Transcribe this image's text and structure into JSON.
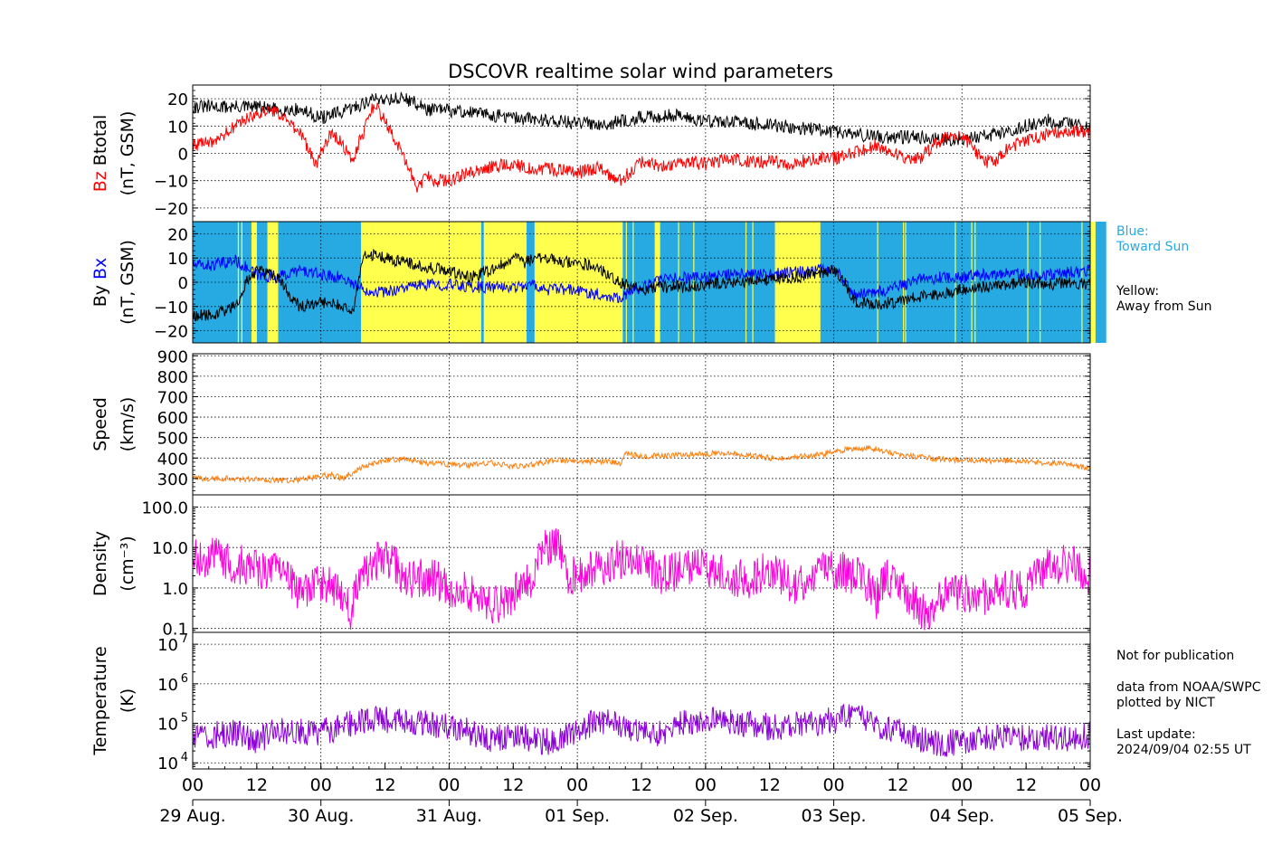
{
  "chart_data": {
    "title": "DSCOVR realtime solar wind parameters",
    "type": "line",
    "x_range": [
      "2024-08-29 00:00",
      "2024-09-05 00:00"
    ],
    "data_end": "2024-09-04 02:55",
    "x_hour_ticks": [
      "00",
      "12",
      "00",
      "12",
      "00",
      "12",
      "00",
      "12",
      "00",
      "12",
      "00",
      "12",
      "00",
      "12",
      "00"
    ],
    "x_date_labels": [
      "29 Aug.",
      "30 Aug.",
      "31 Aug.",
      "01 Sep.",
      "02 Sep.",
      "03 Sep.",
      "04 Sep.",
      "05 Sep."
    ],
    "grid": true,
    "panels": [
      {
        "id": "mag-total",
        "ylabel_parts": [
          {
            "text": "Bz",
            "color": "#ff0000"
          },
          {
            "text": "Btotal",
            "color": "#000000"
          }
        ],
        "ylabel_unit": "(nT, GSM)",
        "ylim": [
          -25,
          25
        ],
        "yticks": [
          20,
          10,
          0,
          -10,
          -20
        ],
        "ytick_labels": [
          "20",
          "10",
          "0",
          "−10",
          "−20"
        ],
        "series": [
          {
            "name": "Btotal",
            "color": "#000000",
            "x": [
              0,
              8,
              12,
              16,
              20,
              24,
              28,
              34,
              40,
              44,
              46,
              52,
              60,
              68,
              72,
              78,
              84,
              90,
              96,
              104,
              110,
              120,
              128,
              136,
              142,
              146,
              150,
              154,
              160,
              166,
              170,
              171
            ],
            "y": [
              17,
              17,
              17,
              16,
              16,
              13,
              15,
              20,
              20,
              16,
              16,
              15,
              13,
              12,
              11,
              11,
              13,
              14,
              12,
              11,
              10,
              8,
              6,
              6,
              5,
              6,
              7,
              9,
              12,
              10,
              8,
              9
            ]
          },
          {
            "name": "Bz",
            "color": "#ff0000",
            "x": [
              0,
              4,
              8,
              12,
              16,
              20,
              23,
              26,
              30,
              34,
              38,
              42,
              44,
              45,
              48,
              52,
              56,
              60,
              64,
              68,
              72,
              76,
              80,
              84,
              88,
              92,
              96,
              100,
              104,
              108,
              112,
              116,
              120,
              124,
              128,
              132,
              136,
              140,
              144,
              148,
              150,
              152,
              156,
              160,
              164,
              166,
              170,
              171
            ],
            "y": [
              3,
              4,
              10,
              15,
              15,
              8,
              -4,
              8,
              -2,
              18,
              5,
              -12,
              -8,
              -10,
              -10,
              -7,
              -5,
              -4,
              -6,
              -6,
              -7,
              -5,
              -10,
              -3,
              -5,
              -3,
              -4,
              -2,
              -3,
              -3,
              -4,
              -2,
              -2,
              0,
              3,
              -1,
              -2,
              5,
              7,
              -3,
              -3,
              1,
              5,
              7,
              8,
              8,
              7,
              7
            ]
          }
        ]
      },
      {
        "id": "mag-direction",
        "ylabel_parts": [
          {
            "text": "By",
            "color": "#000000"
          },
          {
            "text": "Bx",
            "color": "#0000ff"
          }
        ],
        "ylabel_unit": "(nT, GSM)",
        "ylim": [
          -25,
          25
        ],
        "yticks": [
          20,
          10,
          0,
          -10,
          -20
        ],
        "ytick_labels": [
          "20",
          "10",
          "0",
          "−10",
          "−20"
        ],
        "background_color_toward": "#27aae1",
        "background_color_away": "#ffff4d",
        "sector_intervals": [
          {
            "start": 0,
            "end": 11,
            "sector": "toward"
          },
          {
            "start": 11,
            "end": 12,
            "sector": "away"
          },
          {
            "start": 12,
            "end": 14,
            "sector": "toward"
          },
          {
            "start": 14,
            "end": 16,
            "sector": "away"
          },
          {
            "start": 16,
            "end": 31.5,
            "sector": "toward"
          },
          {
            "start": 31.5,
            "end": 54,
            "sector": "away"
          },
          {
            "start": 54,
            "end": 54.5,
            "sector": "toward"
          },
          {
            "start": 54.5,
            "end": 62.5,
            "sector": "away"
          },
          {
            "start": 62.5,
            "end": 64,
            "sector": "toward"
          },
          {
            "start": 64,
            "end": 80.5,
            "sector": "away"
          },
          {
            "start": 80.5,
            "end": 86.5,
            "sector": "toward"
          },
          {
            "start": 86.5,
            "end": 87.5,
            "sector": "away"
          },
          {
            "start": 87.5,
            "end": 109,
            "sector": "toward"
          },
          {
            "start": 109,
            "end": 117.5,
            "sector": "away"
          },
          {
            "start": 117.5,
            "end": 126,
            "sector": "toward"
          },
          {
            "start": 126,
            "end": 168,
            "sector": "toward"
          },
          {
            "start": 168,
            "end": 169,
            "sector": "away"
          },
          {
            "start": 169,
            "end": 171,
            "sector": "toward"
          }
        ],
        "series": [
          {
            "name": "Bx",
            "color": "#0000ff",
            "x": [
              0,
              4,
              8,
              12,
              16,
              20,
              24,
              28,
              32,
              36,
              40,
              44,
              48,
              52,
              56,
              60,
              64,
              66,
              70,
              74,
              78,
              80,
              84,
              88,
              92,
              96,
              100,
              104,
              108,
              112,
              116,
              120,
              124,
              128,
              132,
              136,
              140,
              144,
              148,
              152,
              156,
              160,
              164,
              168,
              171
            ],
            "y": [
              7,
              7,
              9,
              3,
              2,
              5,
              3,
              2,
              -3,
              -4,
              -2,
              -1,
              -1,
              -2,
              -2,
              -2,
              -1,
              -3,
              -3,
              -4,
              -6,
              -6,
              -2,
              1,
              2,
              2,
              3,
              3,
              3,
              4,
              5,
              6,
              -5,
              -4,
              -2,
              1,
              2,
              2,
              3,
              4,
              3,
              3,
              4,
              5,
              6
            ]
          },
          {
            "name": "By",
            "color": "#000000",
            "x": [
              0,
              4,
              8,
              10,
              12,
              16,
              18,
              20,
              24,
              28,
              30,
              32,
              36,
              40,
              44,
              48,
              52,
              56,
              60,
              62,
              64,
              68,
              72,
              76,
              80,
              82,
              84,
              88,
              92,
              96,
              100,
              104,
              108,
              112,
              116,
              120,
              122,
              124,
              128,
              132,
              136,
              140,
              144,
              148,
              152,
              156,
              160,
              164,
              168,
              171
            ],
            "y": [
              -14,
              -13,
              -10,
              0,
              5,
              2,
              -5,
              -10,
              -8,
              -10,
              -13,
              12,
              10,
              8,
              6,
              5,
              2,
              5,
              10,
              8,
              10,
              9,
              8,
              6,
              0,
              -2,
              -3,
              -2,
              -2,
              -1,
              0,
              0,
              1,
              2,
              3,
              5,
              0,
              -8,
              -9,
              -8,
              -6,
              -5,
              -3,
              -2,
              -1,
              0,
              -1,
              0,
              -1,
              0
            ]
          }
        ]
      },
      {
        "id": "speed",
        "ylabel_parts": [
          {
            "text": "Speed",
            "color": "#000000"
          }
        ],
        "ylabel_unit": "(km/s)",
        "ylim": [
          220,
          910
        ],
        "yticks": [
          900,
          800,
          700,
          600,
          500,
          400,
          300
        ],
        "ytick_labels": [
          "900",
          "800",
          "700",
          "600",
          "500",
          "400",
          "300"
        ],
        "series": [
          {
            "name": "Speed",
            "color": "#ff7f0e",
            "x": [
              0,
              6,
              12,
              18,
              22,
              26,
              28,
              30,
              32,
              36,
              40,
              44,
              48,
              52,
              56,
              60,
              64,
              68,
              72,
              76,
              80,
              81,
              84,
              88,
              92,
              96,
              100,
              104,
              108,
              112,
              116,
              120,
              124,
              128,
              132,
              136,
              140,
              144,
              148,
              152,
              156,
              160,
              164,
              168,
              171
            ],
            "y": [
              300,
              300,
              295,
              290,
              300,
              320,
              300,
              330,
              360,
              390,
              395,
              375,
              370,
              365,
              375,
              360,
              370,
              390,
              385,
              385,
              375,
              420,
              410,
              410,
              415,
              420,
              425,
              415,
              400,
              405,
              410,
              430,
              450,
              445,
              415,
              405,
              395,
              390,
              385,
              385,
              385,
              375,
              375,
              345,
              340
            ]
          }
        ]
      },
      {
        "id": "density",
        "ylabel_parts": [
          {
            "text": "Density",
            "color": "#000000"
          }
        ],
        "ylabel_unit": "(cm⁻³)",
        "yscale": "log",
        "ylim": [
          0.08,
          200
        ],
        "yticks": [
          100,
          10,
          1,
          0.1
        ],
        "ytick_labels": [
          "100.0",
          "10.0",
          "1.0",
          "0.1"
        ],
        "series": [
          {
            "name": "Density",
            "color": "#ff00dd",
            "x": [
              0,
              4,
              8,
              12,
              16,
              20,
              24,
              28,
              30,
              32,
              36,
              40,
              44,
              48,
              52,
              56,
              60,
              64,
              66,
              68,
              70,
              72,
              76,
              80,
              84,
              88,
              92,
              96,
              100,
              104,
              108,
              112,
              116,
              120,
              124,
              128,
              130,
              132,
              136,
              138,
              140,
              144,
              148,
              152,
              156,
              160,
              164,
              168,
              171
            ],
            "y": [
              5,
              6,
              4,
              3,
              2.5,
              0.6,
              1.5,
              0.5,
              0.2,
              3,
              5,
              1.5,
              2,
              1,
              0.8,
              0.3,
              0.7,
              2,
              10,
              12,
              2,
              2,
              3,
              5,
              4,
              2,
              3,
              3,
              2,
              1.5,
              3,
              1,
              2,
              3,
              2,
              0.5,
              2,
              1,
              0.3,
              0.2,
              0.8,
              0.8,
              0.6,
              1,
              0.8,
              3,
              4,
              2,
              0.8
            ]
          }
        ]
      },
      {
        "id": "temperature",
        "ylabel_parts": [
          {
            "text": "Temperature",
            "color": "#000000"
          }
        ],
        "ylabel_unit": "(K)",
        "yscale": "log",
        "ylim": [
          7000,
          20000000
        ],
        "yticks": [
          10000000,
          1000000,
          100000,
          10000
        ],
        "ytick_labels": [
          "10",
          "10",
          "10",
          "10"
        ],
        "ytick_exponents": [
          "7",
          "6",
          "5",
          "4"
        ],
        "series": [
          {
            "name": "Temperature",
            "color": "#8b00d6",
            "x": [
              0,
              4,
              8,
              12,
              16,
              20,
              24,
              28,
              32,
              36,
              40,
              44,
              48,
              52,
              56,
              60,
              64,
              68,
              72,
              76,
              80,
              84,
              88,
              92,
              96,
              100,
              104,
              108,
              112,
              116,
              120,
              124,
              128,
              132,
              136,
              140,
              144,
              148,
              152,
              156,
              160,
              164,
              168,
              171
            ],
            "y": [
              40000,
              50000,
              60000,
              30000,
              70000,
              60000,
              60000,
              80000,
              120000,
              120000,
              100000,
              100000,
              80000,
              60000,
              40000,
              50000,
              40000,
              30000,
              60000,
              120000,
              100000,
              50000,
              60000,
              100000,
              120000,
              110000,
              100000,
              80000,
              90000,
              100000,
              120000,
              150000,
              90000,
              60000,
              40000,
              30000,
              35000,
              40000,
              50000,
              40000,
              45000,
              40000,
              50000,
              20000
            ]
          }
        ]
      }
    ],
    "legend_notes": [
      {
        "text": "Blue:\nToward Sun",
        "color": "#27aae1"
      },
      {
        "text": "Yellow:\nAway from Sun",
        "color": "#000000"
      }
    ],
    "footnotes": {
      "not_for_pub": "Not for publication",
      "source": "data from NOAA/SWPC\nplotted by NICT",
      "update": "Last update:\n2024/09/04 02:55 UT"
    }
  }
}
